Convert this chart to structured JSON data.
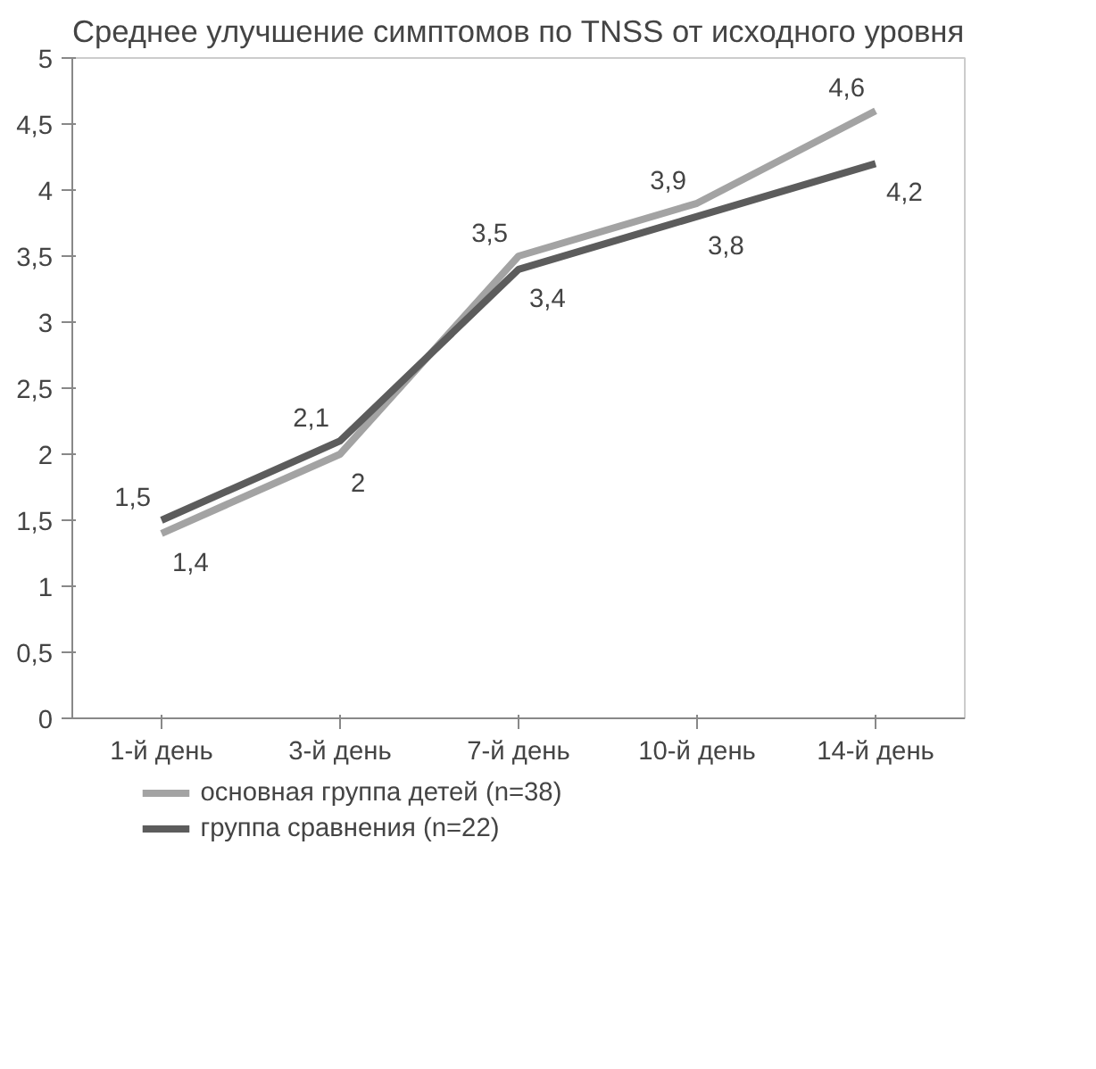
{
  "chart_data": {
    "type": "line",
    "title": "Среднее улучшение симптомов по TNSS от исходного уровня",
    "categories": [
      "1-й день",
      "3-й день",
      "7-й день",
      "10-й день",
      "14-й день"
    ],
    "series": [
      {
        "name": "основная группа детей (n=38)",
        "color": "#a3a3a3",
        "values": [
          1.4,
          2,
          3.5,
          3.9,
          4.6
        ],
        "value_labels": [
          "1,4",
          "2",
          "3,5",
          "3,9",
          "4,6"
        ]
      },
      {
        "name": "группа сравнения (n=22)",
        "color": "#5c5c5c",
        "values": [
          1.5,
          2.1,
          3.4,
          3.8,
          4.2
        ],
        "value_labels": [
          "1,5",
          "2,1",
          "3,4",
          "3,8",
          "4,2"
        ]
      }
    ],
    "ylim": [
      0,
      5
    ],
    "yticks": [
      0,
      {
        "value": 0.5,
        "label": "0,5"
      },
      1,
      {
        "value": 1.5,
        "label": "1,5"
      },
      2,
      {
        "value": 2.5,
        "label": "2,5"
      },
      3,
      {
        "value": 3.5,
        "label": "3,5"
      },
      4,
      {
        "value": 4.5,
        "label": "4,5"
      },
      5
    ],
    "grid": false,
    "legend": "bottom",
    "marker": "none",
    "line_style": "solid"
  }
}
